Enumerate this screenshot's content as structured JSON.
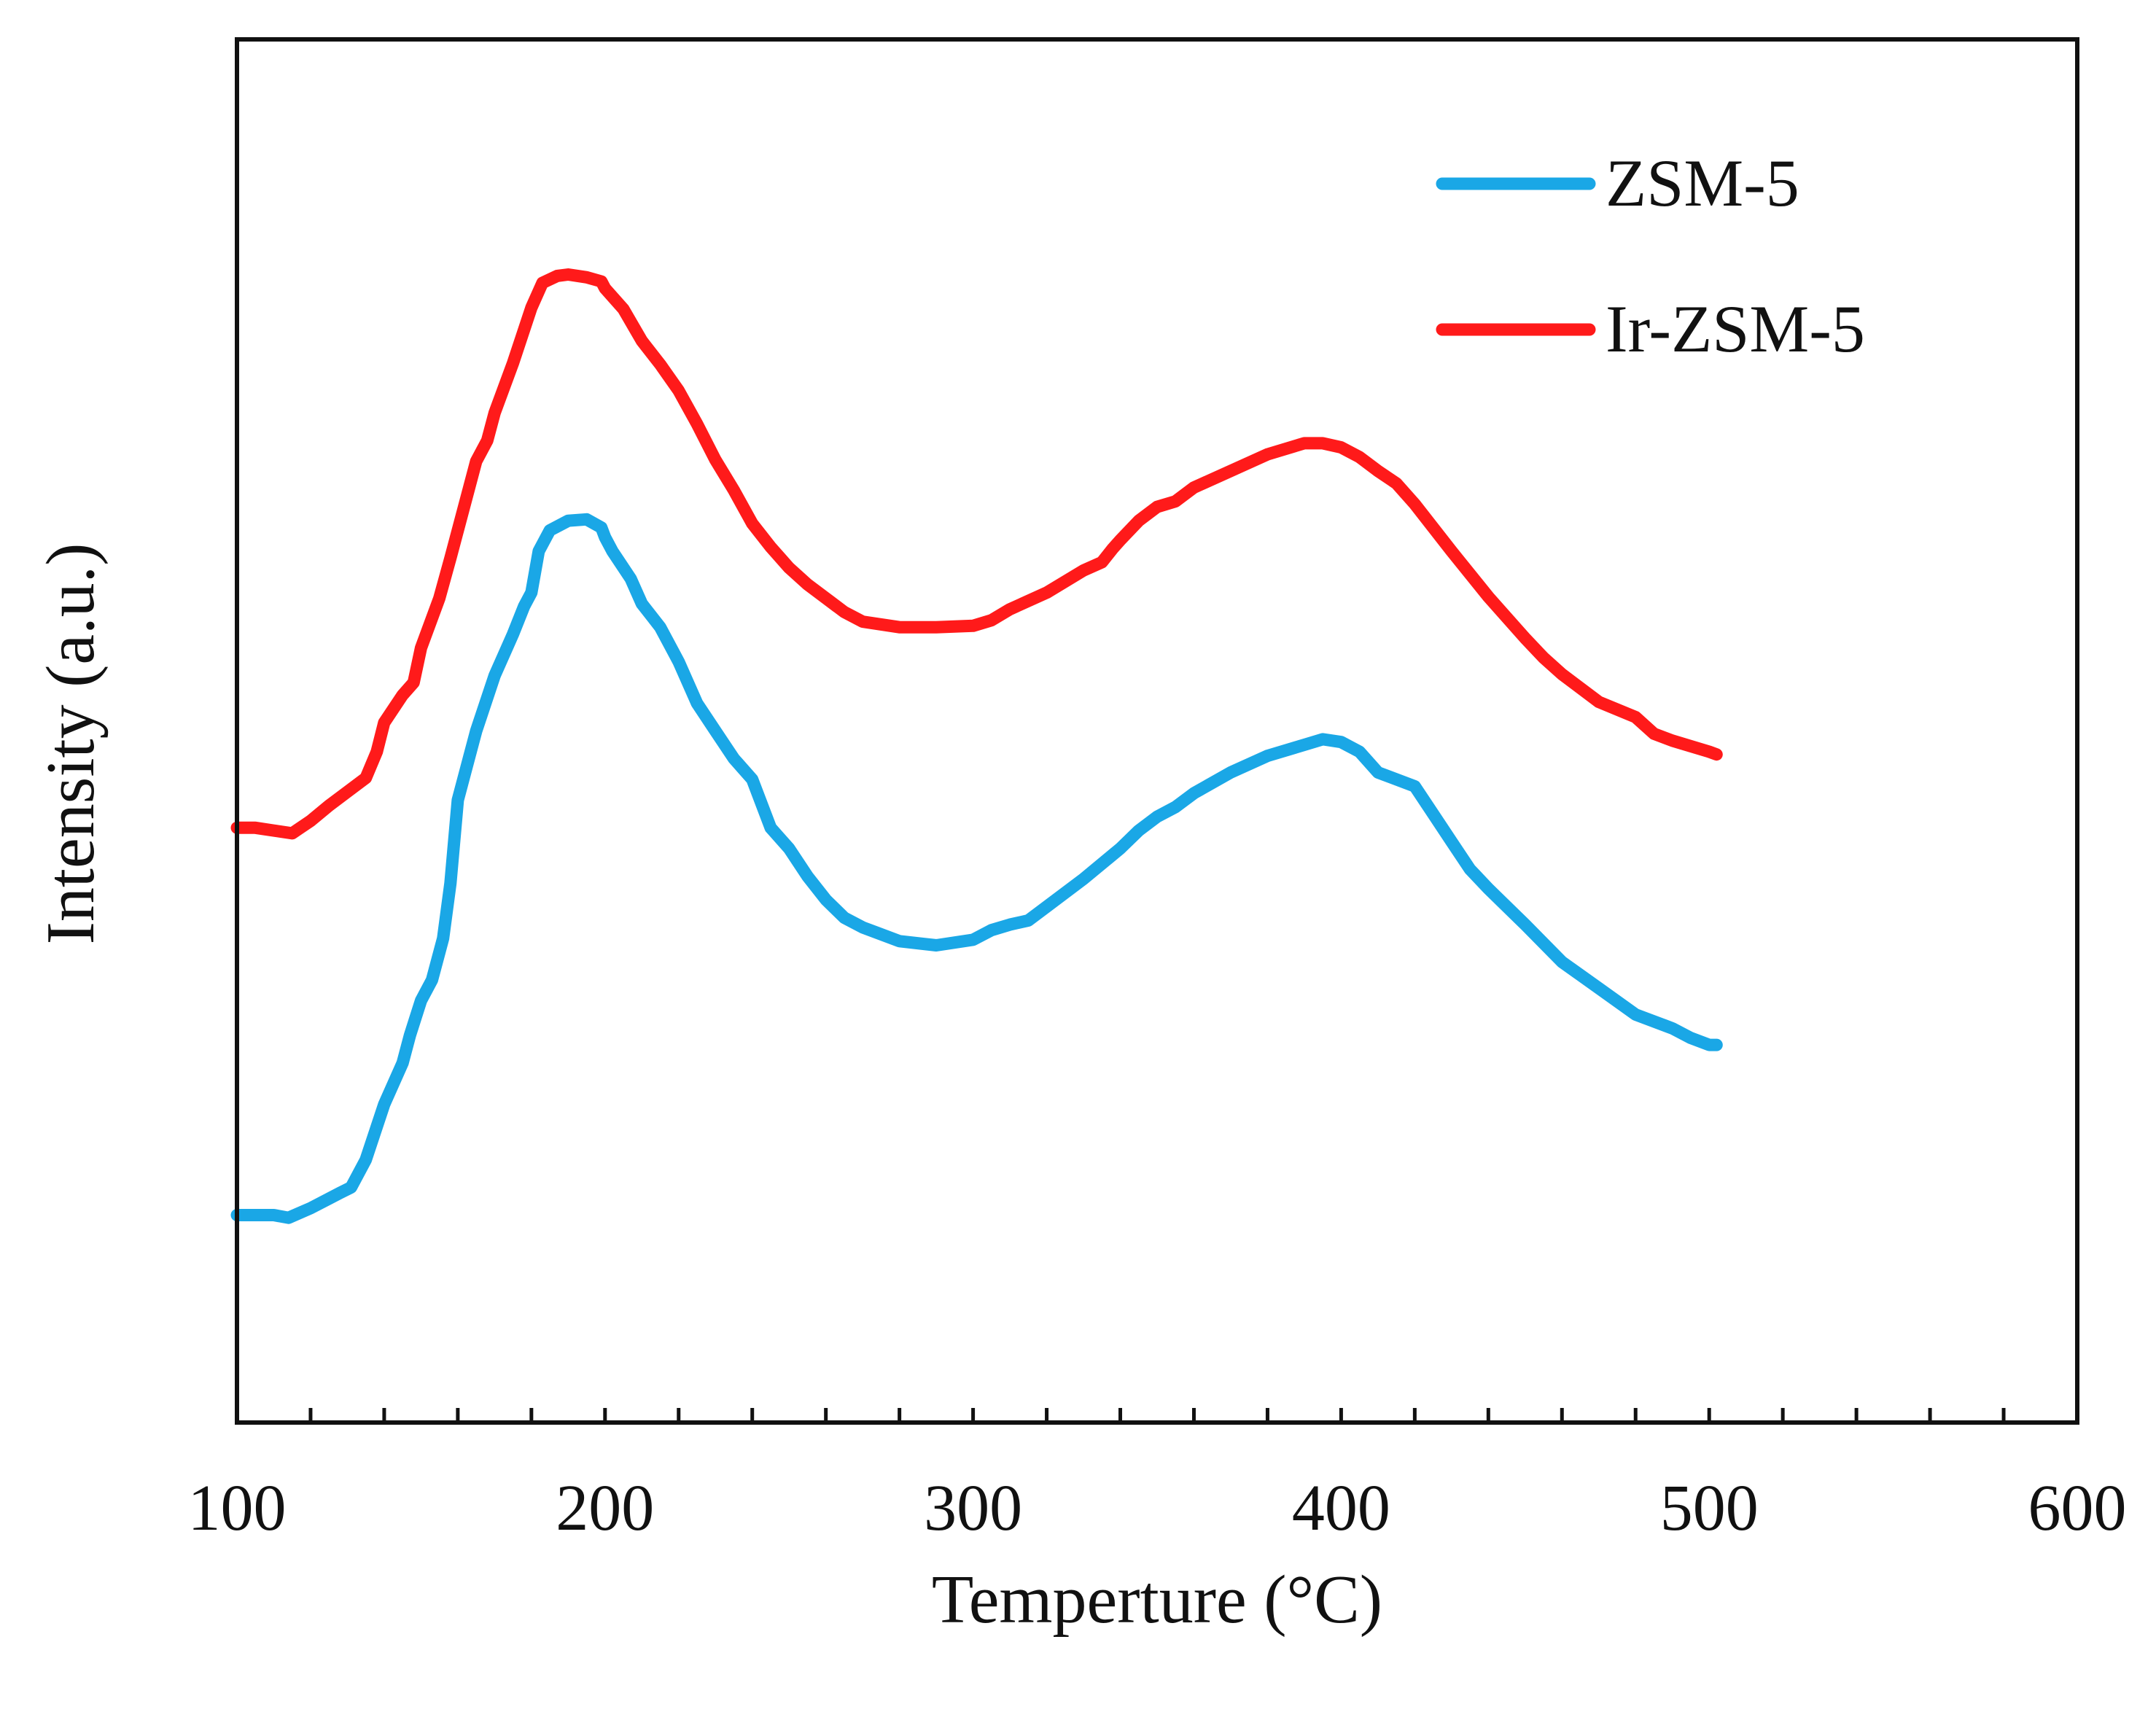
{
  "chart_data": {
    "type": "line",
    "title": "",
    "xlabel": "Temperture (°C)",
    "ylabel": "Intensity (a.u.)",
    "xlim": [
      100,
      600
    ],
    "ylim": [
      0,
      100
    ],
    "x_ticks": [
      "100",
      "200",
      "300",
      "400",
      "500",
      "600"
    ],
    "x_minor_step": 20,
    "y_ticks_shown": false,
    "grid": false,
    "legend_position": "top-right",
    "series": [
      {
        "name": "ZSM-5",
        "color": "#1AA7E6",
        "points": [
          [
            100,
            15
          ],
          [
            110,
            15
          ],
          [
            114,
            14.8
          ],
          [
            120,
            15.5
          ],
          [
            128,
            16.6
          ],
          [
            131,
            17
          ],
          [
            135,
            19
          ],
          [
            140,
            23
          ],
          [
            145,
            26
          ],
          [
            147,
            28
          ],
          [
            150,
            30.5
          ],
          [
            153,
            32
          ],
          [
            156,
            35
          ],
          [
            158,
            39
          ],
          [
            160,
            45
          ],
          [
            163,
            48
          ],
          [
            165,
            50
          ],
          [
            170,
            54
          ],
          [
            175,
            57
          ],
          [
            178,
            59
          ],
          [
            180,
            60
          ],
          [
            182,
            63
          ],
          [
            185,
            64.5
          ],
          [
            190,
            65.2
          ],
          [
            195,
            65.3
          ],
          [
            199,
            64.7
          ],
          [
            200,
            64
          ],
          [
            202,
            63
          ],
          [
            207,
            61
          ],
          [
            210,
            59.2
          ],
          [
            215,
            57.5
          ],
          [
            220,
            55
          ],
          [
            225,
            52
          ],
          [
            230,
            50
          ],
          [
            235,
            48
          ],
          [
            240,
            46.5
          ],
          [
            245,
            43
          ],
          [
            250,
            41.5
          ],
          [
            255,
            39.5
          ],
          [
            260,
            37.8
          ],
          [
            265,
            36.5
          ],
          [
            270,
            35.8
          ],
          [
            280,
            34.8
          ],
          [
            290,
            34.5
          ],
          [
            300,
            34.9
          ],
          [
            305,
            35.6
          ],
          [
            310,
            36
          ],
          [
            315,
            36.3
          ],
          [
            320,
            37.3
          ],
          [
            330,
            39.3
          ],
          [
            340,
            41.5
          ],
          [
            345,
            42.8
          ],
          [
            350,
            43.8
          ],
          [
            355,
            44.5
          ],
          [
            360,
            45.5
          ],
          [
            370,
            47
          ],
          [
            380,
            48.2
          ],
          [
            390,
            49
          ],
          [
            395,
            49.4
          ],
          [
            400,
            49.2
          ],
          [
            405,
            48.5
          ],
          [
            410,
            47
          ],
          [
            420,
            46
          ],
          [
            425,
            44
          ],
          [
            430,
            42
          ],
          [
            435,
            40
          ],
          [
            440,
            38.6
          ],
          [
            450,
            36
          ],
          [
            460,
            33.3
          ],
          [
            470,
            31.4
          ],
          [
            480,
            29.5
          ],
          [
            490,
            28.5
          ],
          [
            495,
            27.8
          ],
          [
            500,
            27.3
          ],
          [
            502,
            27.3
          ]
        ]
      },
      {
        "name": "Ir-ZSM-5",
        "color": "#FF1A1A",
        "points": [
          [
            100,
            43
          ],
          [
            105,
            43
          ],
          [
            110,
            42.8
          ],
          [
            115,
            42.6
          ],
          [
            120,
            43.5
          ],
          [
            125,
            44.6
          ],
          [
            130,
            45.6
          ],
          [
            135,
            46.6
          ],
          [
            138,
            48.5
          ],
          [
            140,
            50.6
          ],
          [
            145,
            52.6
          ],
          [
            148,
            53.5
          ],
          [
            150,
            56
          ],
          [
            155,
            59.6
          ],
          [
            158,
            62.5
          ],
          [
            160,
            64.5
          ],
          [
            165,
            69.5
          ],
          [
            168,
            71
          ],
          [
            170,
            73
          ],
          [
            175,
            76.6
          ],
          [
            180,
            80.6
          ],
          [
            183,
            82.4
          ],
          [
            187,
            82.9
          ],
          [
            190,
            83
          ],
          [
            195,
            82.8
          ],
          [
            199,
            82.5
          ],
          [
            200,
            82
          ],
          [
            205,
            80.5
          ],
          [
            210,
            78.2
          ],
          [
            215,
            76.5
          ],
          [
            220,
            74.6
          ],
          [
            225,
            72.2
          ],
          [
            230,
            69.6
          ],
          [
            235,
            67.4
          ],
          [
            240,
            65
          ],
          [
            245,
            63.3
          ],
          [
            250,
            61.8
          ],
          [
            255,
            60.6
          ],
          [
            260,
            59.6
          ],
          [
            265,
            58.6
          ],
          [
            270,
            57.9
          ],
          [
            280,
            57.5
          ],
          [
            290,
            57.5
          ],
          [
            300,
            57.6
          ],
          [
            305,
            58
          ],
          [
            310,
            58.8
          ],
          [
            320,
            60
          ],
          [
            330,
            61.6
          ],
          [
            335,
            62.2
          ],
          [
            338,
            63.2
          ],
          [
            340,
            63.8
          ],
          [
            345,
            65.2
          ],
          [
            350,
            66.2
          ],
          [
            355,
            66.6
          ],
          [
            360,
            67.6
          ],
          [
            370,
            68.8
          ],
          [
            380,
            70
          ],
          [
            390,
            70.8
          ],
          [
            395,
            70.8
          ],
          [
            400,
            70.5
          ],
          [
            405,
            69.8
          ],
          [
            410,
            68.8
          ],
          [
            415,
            67.9
          ],
          [
            420,
            66.4
          ],
          [
            425,
            64.7
          ],
          [
            430,
            63
          ],
          [
            440,
            59.7
          ],
          [
            450,
            56.7
          ],
          [
            455,
            55.3
          ],
          [
            460,
            54.1
          ],
          [
            470,
            52.1
          ],
          [
            480,
            51
          ],
          [
            485,
            49.8
          ],
          [
            490,
            49.3
          ],
          [
            500,
            48.5
          ],
          [
            502,
            48.3
          ]
        ]
      }
    ]
  }
}
